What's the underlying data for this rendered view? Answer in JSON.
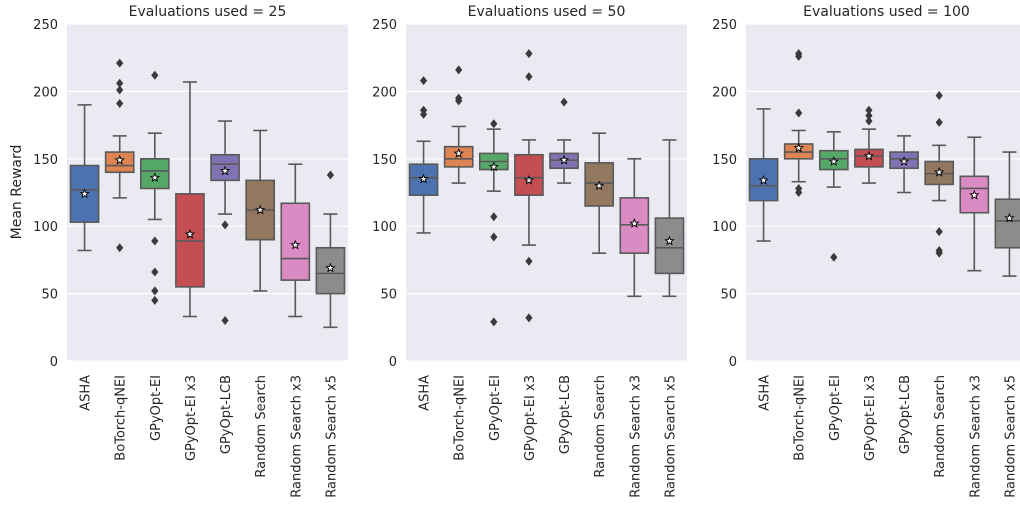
{
  "chart_data": {
    "type": "box",
    "ylabel": "Mean Reward",
    "ylim": [
      0,
      250
    ],
    "yticks": [
      "0",
      "50",
      "100",
      "150",
      "200",
      "250"
    ],
    "grid": true,
    "mean_marker": "star",
    "categories": [
      "ASHA",
      "BoTorch-qNEI",
      "GPyOpt-EI",
      "GPyOpt-EI x3",
      "GPyOpt-LCB",
      "Random Search",
      "Random Search x3",
      "Random Search x5"
    ],
    "colors": [
      "#4c72b0",
      "#dd8452",
      "#55a868",
      "#c44e52",
      "#8172b3",
      "#937860",
      "#da8bc3",
      "#8c8c8c"
    ],
    "panels": [
      {
        "title": "Evaluations used = 25",
        "boxes": [
          {
            "q1": 103,
            "median": 127,
            "q3": 145,
            "whislo": 82,
            "whishi": 190,
            "mean": 124,
            "fliers": []
          },
          {
            "q1": 140,
            "median": 145,
            "q3": 155,
            "whislo": 121,
            "whishi": 167,
            "mean": 149,
            "fliers": [
              84,
              191,
              201,
              206,
              221
            ]
          },
          {
            "q1": 128,
            "median": 141,
            "q3": 150,
            "whislo": 105,
            "whishi": 169,
            "mean": 136,
            "fliers": [
              45,
              52,
              66,
              89,
              212
            ]
          },
          {
            "q1": 55,
            "median": 89,
            "q3": 124,
            "whislo": 33,
            "whishi": 207,
            "mean": 94,
            "fliers": []
          },
          {
            "q1": 134,
            "median": 146,
            "q3": 153,
            "whislo": 109,
            "whishi": 178,
            "mean": 141,
            "fliers": [
              30,
              101
            ]
          },
          {
            "q1": 90,
            "median": 112,
            "q3": 134,
            "whislo": 52,
            "whishi": 171,
            "mean": 112,
            "fliers": []
          },
          {
            "q1": 60,
            "median": 76,
            "q3": 117,
            "whislo": 33,
            "whishi": 146,
            "mean": 86,
            "fliers": []
          },
          {
            "q1": 50,
            "median": 65,
            "q3": 84,
            "whislo": 25,
            "whishi": 109,
            "mean": 69,
            "fliers": [
              138
            ]
          }
        ]
      },
      {
        "title": "Evaluations used = 50",
        "boxes": [
          {
            "q1": 123,
            "median": 136,
            "q3": 146,
            "whislo": 95,
            "whishi": 163,
            "mean": 135,
            "fliers": [
              183,
              186,
              208
            ]
          },
          {
            "q1": 144,
            "median": 150,
            "q3": 159,
            "whislo": 132,
            "whishi": 174,
            "mean": 154,
            "fliers": [
              193,
              195,
              216
            ]
          },
          {
            "q1": 142,
            "median": 148,
            "q3": 154,
            "whislo": 126,
            "whishi": 172,
            "mean": 144,
            "fliers": [
              29,
              92,
              107,
              176
            ]
          },
          {
            "q1": 123,
            "median": 136,
            "q3": 153,
            "whislo": 86,
            "whishi": 164,
            "mean": 134,
            "fliers": [
              32,
              74,
              211,
              228
            ]
          },
          {
            "q1": 143,
            "median": 149,
            "q3": 154,
            "whislo": 132,
            "whishi": 164,
            "mean": 149,
            "fliers": [
              192
            ]
          },
          {
            "q1": 115,
            "median": 132,
            "q3": 147,
            "whislo": 80,
            "whishi": 169,
            "mean": 130,
            "fliers": []
          },
          {
            "q1": 80,
            "median": 101,
            "q3": 121,
            "whislo": 48,
            "whishi": 150,
            "mean": 102,
            "fliers": []
          },
          {
            "q1": 65,
            "median": 84,
            "q3": 106,
            "whislo": 48,
            "whishi": 164,
            "mean": 89,
            "fliers": []
          }
        ]
      },
      {
        "title": "Evaluations used = 100",
        "boxes": [
          {
            "q1": 119,
            "median": 130,
            "q3": 150,
            "whislo": 89,
            "whishi": 187,
            "mean": 134,
            "fliers": []
          },
          {
            "q1": 150,
            "median": 155,
            "q3": 161,
            "whislo": 133,
            "whishi": 171,
            "mean": 158,
            "fliers": [
              125,
              128,
              184,
              226,
              228
            ]
          },
          {
            "q1": 142,
            "median": 150,
            "q3": 156,
            "whislo": 129,
            "whishi": 170,
            "mean": 148,
            "fliers": [
              77
            ]
          },
          {
            "q1": 144,
            "median": 152,
            "q3": 157,
            "whislo": 132,
            "whishi": 172,
            "mean": 152,
            "fliers": [
              178,
              182,
              186
            ]
          },
          {
            "q1": 143,
            "median": 150,
            "q3": 155,
            "whislo": 125,
            "whishi": 167,
            "mean": 148,
            "fliers": []
          },
          {
            "q1": 131,
            "median": 139,
            "q3": 148,
            "whislo": 119,
            "whishi": 160,
            "mean": 140,
            "fliers": [
              80,
              82,
              96,
              177,
              197
            ]
          },
          {
            "q1": 110,
            "median": 128,
            "q3": 137,
            "whislo": 67,
            "whishi": 166,
            "mean": 123,
            "fliers": []
          },
          {
            "q1": 84,
            "median": 104,
            "q3": 120,
            "whislo": 63,
            "whishi": 155,
            "mean": 106,
            "fliers": []
          }
        ]
      }
    ]
  }
}
